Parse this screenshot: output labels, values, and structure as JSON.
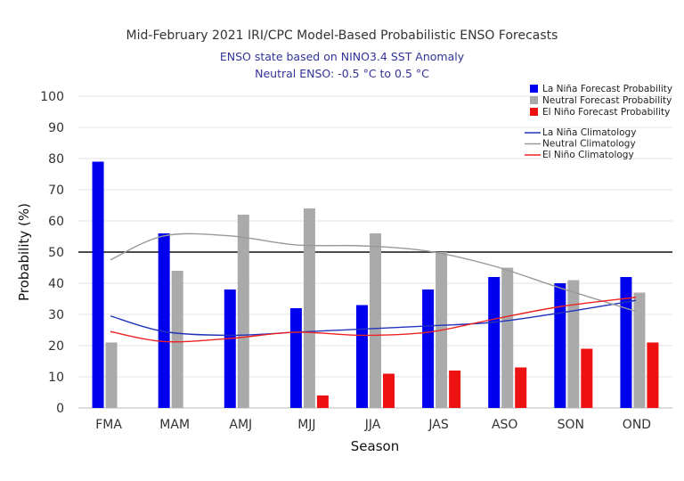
{
  "chart_data": {
    "type": "bar",
    "title": "Mid-February 2021 IRI/CPC Model-Based Probabilistic ENSO Forecasts",
    "subtitle_lines": [
      "ENSO state based on NINO3.4 SST Anomaly",
      "Neutral ENSO: -0.5 °C to 0.5 °C"
    ],
    "xlabel": "Season",
    "ylabel": "Probability (%)",
    "ylim": [
      0,
      100
    ],
    "yticks": [
      "0",
      "10",
      "20",
      "30",
      "40",
      "50",
      "60",
      "70",
      "80",
      "90",
      "100"
    ],
    "reference_line": 50,
    "grid": true,
    "legend_position": "top-right",
    "categories": [
      "FMA",
      "MAM",
      "AMJ",
      "MJJ",
      "JJA",
      "JAS",
      "ASO",
      "SON",
      "OND"
    ],
    "series": [
      {
        "name": "La Niña Forecast Probability",
        "color": "#0000ee",
        "values": [
          79,
          56,
          38,
          32,
          33,
          38,
          42,
          40,
          42
        ]
      },
      {
        "name": "Neutral Forecast Probability",
        "color": "#aaaaaa",
        "values": [
          21,
          44,
          62,
          64,
          56,
          50,
          45,
          41,
          37
        ]
      },
      {
        "name": "El Niño Forecast Probability",
        "color": "#ee1111",
        "values": [
          0,
          0,
          0,
          4,
          11,
          12,
          13,
          19,
          21
        ]
      }
    ],
    "climatology": [
      {
        "name": "La Niña Climatology",
        "color": "#2233bb",
        "values": [
          29.5,
          24.5,
          23.3,
          24.3,
          25.3,
          26.3,
          27.5,
          30.5,
          34.5
        ]
      },
      {
        "name": "Neutral Climatology",
        "color": "#999999",
        "values": [
          47.5,
          55.2,
          55.2,
          52.3,
          52.0,
          50.3,
          45.5,
          38.5,
          31.0
        ]
      },
      {
        "name": "El Niño Climatology",
        "color": "#ee2222",
        "values": [
          24.5,
          21.3,
          22.3,
          24.3,
          23.3,
          24.3,
          28.5,
          32.5,
          35.5
        ]
      }
    ]
  }
}
